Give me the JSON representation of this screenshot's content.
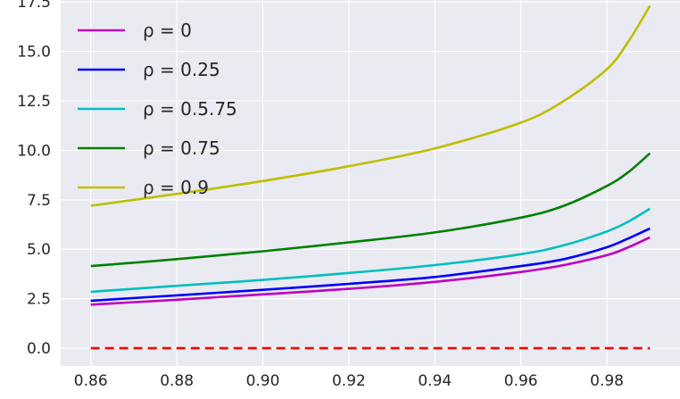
{
  "chart_data": {
    "type": "line",
    "title": "",
    "xlabel": "",
    "ylabel": "",
    "xlim": [
      0.853,
      0.997
    ],
    "ylim": [
      -0.9,
      17.6
    ],
    "xticks": [
      "0.86",
      "0.88",
      "0.90",
      "0.92",
      "0.94",
      "0.96",
      "0.98"
    ],
    "xtick_values": [
      0.86,
      0.88,
      0.9,
      0.92,
      0.94,
      0.96,
      0.98
    ],
    "yticks": [
      "0.0",
      "2.5",
      "5.0",
      "7.5",
      "10.0",
      "12.5",
      "15.0",
      "17.5"
    ],
    "ytick_values": [
      0,
      2.5,
      5.0,
      7.5,
      10.0,
      12.5,
      15.0,
      17.5
    ],
    "grid": true,
    "background": "#eaeaf2",
    "legend_position": "upper-left",
    "x": [
      0.86,
      0.88,
      0.9,
      0.92,
      0.94,
      0.96,
      0.97,
      0.98,
      0.985,
      0.99
    ],
    "series": [
      {
        "name": "ρ = 0",
        "color": "#bf00bf",
        "dash": "solid",
        "values": [
          2.2,
          2.45,
          2.72,
          3.0,
          3.35,
          3.85,
          4.2,
          4.7,
          5.1,
          5.6
        ]
      },
      {
        "name": "ρ = 0.25",
        "color": "#0000ff",
        "dash": "solid",
        "values": [
          2.4,
          2.67,
          2.95,
          3.25,
          3.6,
          4.15,
          4.5,
          5.1,
          5.55,
          6.05
        ]
      },
      {
        "name": "ρ = 0.5.75",
        "color": "#00bfbf",
        "dash": "solid",
        "values": [
          2.85,
          3.15,
          3.45,
          3.8,
          4.2,
          4.75,
          5.2,
          5.9,
          6.4,
          7.05
        ]
      },
      {
        "name": "ρ = 0.75",
        "color": "#008000",
        "dash": "solid",
        "values": [
          4.15,
          4.5,
          4.9,
          5.35,
          5.85,
          6.6,
          7.2,
          8.2,
          8.9,
          9.85
        ]
      },
      {
        "name": "ρ = 0.9",
        "color": "#bfbf00",
        "dash": "solid",
        "values": [
          7.2,
          7.8,
          8.45,
          9.2,
          10.1,
          11.4,
          12.5,
          14.1,
          15.5,
          17.3
        ]
      },
      {
        "color": "#ff0000",
        "dash": "dashed",
        "values": [
          0,
          0,
          0,
          0,
          0,
          0,
          0,
          0,
          0,
          0
        ]
      }
    ]
  }
}
